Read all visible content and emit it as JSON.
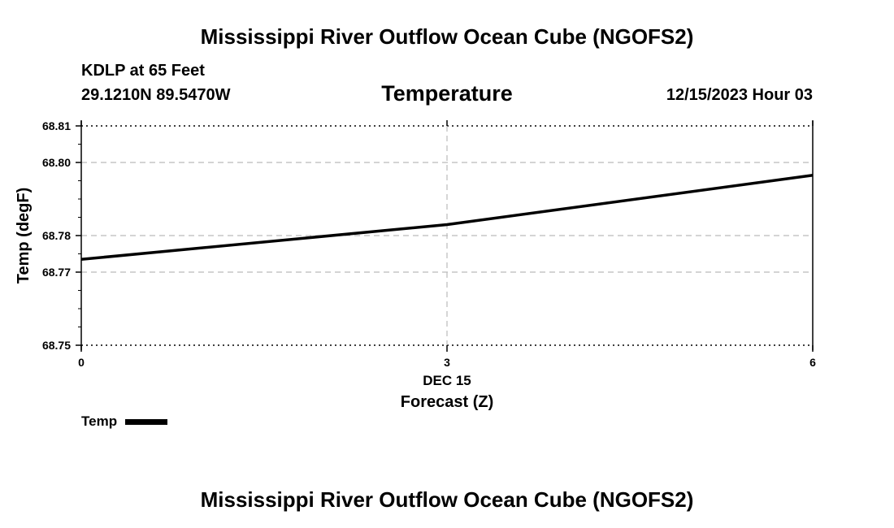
{
  "header": {
    "title": "Mississippi River Outflow Ocean Cube (NGOFS2)",
    "station": "KDLP at 65 Feet",
    "coords": "29.1210N  89.5470W",
    "chart_title": "Temperature",
    "timestamp": "12/15/2023 Hour 03"
  },
  "footer": {
    "title": "Mississippi River Outflow Ocean Cube (NGOFS2)"
  },
  "legend": {
    "label": "Temp",
    "color": "#000000"
  },
  "chart_data": {
    "type": "line",
    "title": "Temperature",
    "xlabel": "Forecast (Z)",
    "ylabel": "Temp (degF)",
    "x_date_label": "DEC 15",
    "xlim": [
      0,
      6
    ],
    "ylim": [
      68.75,
      68.81
    ],
    "x_ticks": [
      0,
      3,
      6
    ],
    "x_tick_labels": [
      "0",
      "3",
      "6"
    ],
    "y_ticks": [
      68.75,
      68.77,
      68.78,
      68.8,
      68.81
    ],
    "y_tick_labels": [
      "68.75",
      "68.77",
      "68.78",
      "68.80",
      "68.81"
    ],
    "grid": true,
    "series": [
      {
        "name": "Temp",
        "color": "#000000",
        "x": [
          0,
          3,
          6
        ],
        "y": [
          68.7735,
          68.783,
          68.7965
        ]
      }
    ]
  }
}
